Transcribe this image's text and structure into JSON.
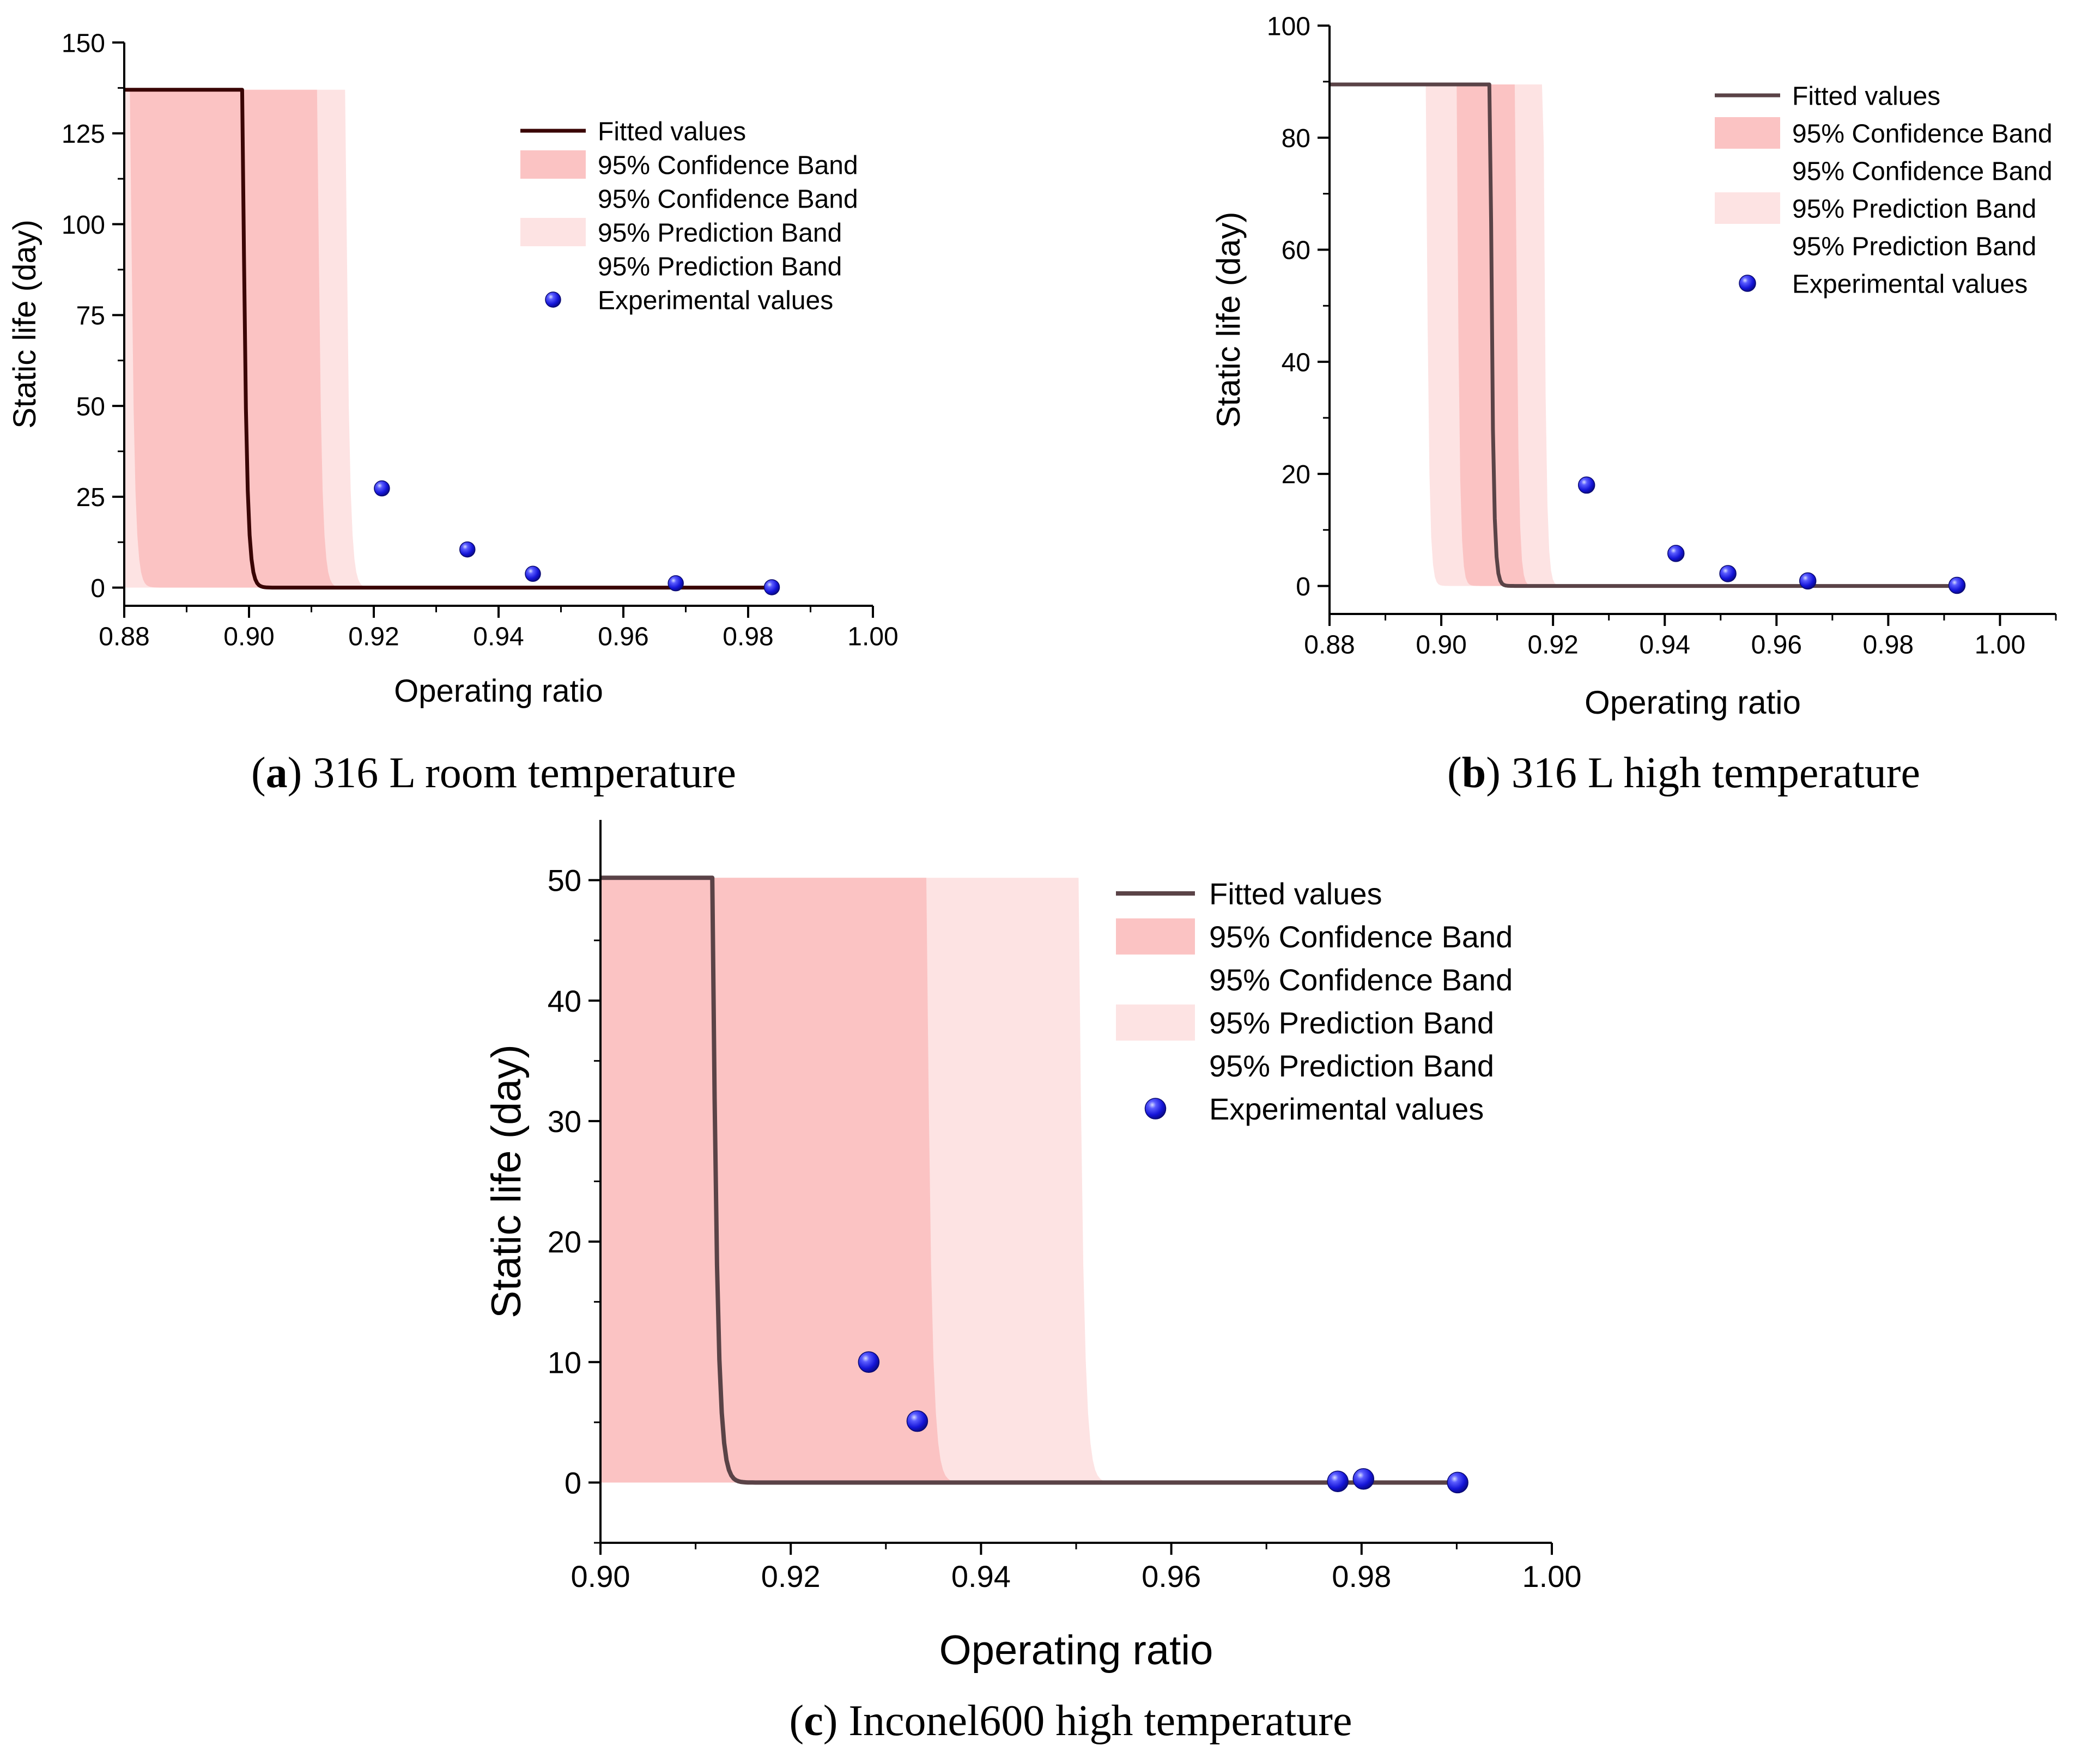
{
  "figure_captions": [
    {
      "letter": "a",
      "text": " 316 L room temperature"
    },
    {
      "letter": "b",
      "text": " 316 L high temperature"
    },
    {
      "letter": "c",
      "text": " Inconel600 high temperature"
    }
  ],
  "legend_labels": [
    "Fitted values",
    "95% Confidence Band",
    "95% Confidence Band",
    "95% Prediction Band",
    "95% Prediction Band",
    "Experimental values"
  ],
  "colors": {
    "confidence_band": "#fbc3c3",
    "prediction_band": "#fde3e3",
    "fitted_line_a": "#3a0505",
    "fitted_line_bc": "#5a4347",
    "marker": "#1a1ae6",
    "marker_highlight": "#cfd4ff"
  },
  "chart_data": [
    {
      "type": "line",
      "id": "a",
      "title": "(a) 316 L room temperature",
      "xlabel": "Operating ratio",
      "ylabel": "Static life (day)",
      "xlim": [
        0.88,
        1.0
      ],
      "ylim": [
        -5,
        150
      ],
      "xticks": [
        0.88,
        0.9,
        0.92,
        0.94,
        0.96,
        0.98,
        1.0
      ],
      "xtick_labels": [
        "0.88",
        "0.90",
        "0.92",
        "0.94",
        "0.96",
        "0.98",
        "1.00"
      ],
      "yticks": [
        0,
        25,
        50,
        75,
        100,
        125,
        150
      ],
      "ytick_labels": [
        "0",
        "25",
        "50",
        "75",
        "100",
        "125",
        "150"
      ],
      "cap": 137,
      "fit": {
        "x0": 0.899,
        "k": 45,
        "x_end": 0.984
      },
      "confidence_band": {
        "upper_shift": 0.012,
        "lower_shift": -0.018
      },
      "prediction_band": {
        "upper_shift": 0.0165,
        "lower_shift": -0.032
      },
      "series": [
        {
          "name": "Fitted values",
          "kind": "line"
        },
        {
          "name": "Experimental values",
          "kind": "scatter",
          "x": [
            0.9213,
            0.935,
            0.9455,
            0.9684,
            0.9838
          ],
          "y": [
            27.3,
            10.5,
            3.8,
            1.2,
            0.1
          ]
        }
      ],
      "legend": "top-right"
    },
    {
      "type": "line",
      "id": "b",
      "title": "(b) 316 L high temperature",
      "xlabel": "Operating ratio",
      "ylabel": "Static life (day)",
      "xlim": [
        0.88,
        1.01
      ],
      "ylim": [
        -5,
        100
      ],
      "xticks": [
        0.88,
        0.9,
        0.92,
        0.94,
        0.96,
        0.98,
        1.0
      ],
      "xtick_labels": [
        "0.88",
        "0.90",
        "0.92",
        "0.94",
        "0.96",
        "0.98",
        "1.00"
      ],
      "yticks": [
        0,
        20,
        40,
        60,
        80,
        100
      ],
      "ytick_labels": [
        "0",
        "20",
        "40",
        "60",
        "80",
        "100"
      ],
      "cap": 89.5,
      "fit": {
        "x0": 0.9088,
        "k": 57,
        "x_end": 0.992
      },
      "confidence_band": {
        "upper_shift": 0.0045,
        "lower_shift": -0.006
      },
      "prediction_band": {
        "upper_shift": 0.0095,
        "lower_shift": -0.0115
      },
      "series": [
        {
          "name": "Fitted values",
          "kind": "line"
        },
        {
          "name": "Experimental values",
          "kind": "scatter",
          "x": [
            0.926,
            0.942,
            0.9513,
            0.9656,
            0.9923
          ],
          "y": [
            18.0,
            5.8,
            2.2,
            0.9,
            0.1
          ]
        }
      ],
      "legend": "top-right"
    },
    {
      "type": "line",
      "id": "c",
      "title": "(c) Inconel600 high temperature",
      "xlabel": "Operating ratio",
      "ylabel": "Static life (day)",
      "xlim": [
        0.9,
        1.0
      ],
      "ylim": [
        -5,
        55
      ],
      "xticks": [
        0.9,
        0.92,
        0.94,
        0.96,
        0.98,
        1.0
      ],
      "xtick_labels": [
        "0.90",
        "0.92",
        "0.94",
        "0.96",
        "0.98",
        "1.00"
      ],
      "yticks": [
        0,
        10,
        20,
        30,
        40,
        50
      ],
      "ytick_labels": [
        "0",
        "10",
        "20",
        "30",
        "40",
        "50"
      ],
      "cap": 50.2,
      "fit": {
        "x0": 0.9118,
        "k": 50,
        "x_end": 0.99
      },
      "confidence_band": {
        "upper_shift": 0.0225,
        "lower_shift": -0.035
      },
      "prediction_band": {
        "upper_shift": 0.0385,
        "lower_shift": -0.07
      },
      "series": [
        {
          "name": "Fitted values",
          "kind": "line"
        },
        {
          "name": "Experimental values",
          "kind": "scatter",
          "x": [
            0.9282,
            0.9333,
            0.9775,
            0.9802,
            0.9901
          ],
          "y": [
            10.0,
            5.1,
            0.1,
            0.3,
            0.0
          ]
        }
      ],
      "legend": "top-right"
    }
  ]
}
